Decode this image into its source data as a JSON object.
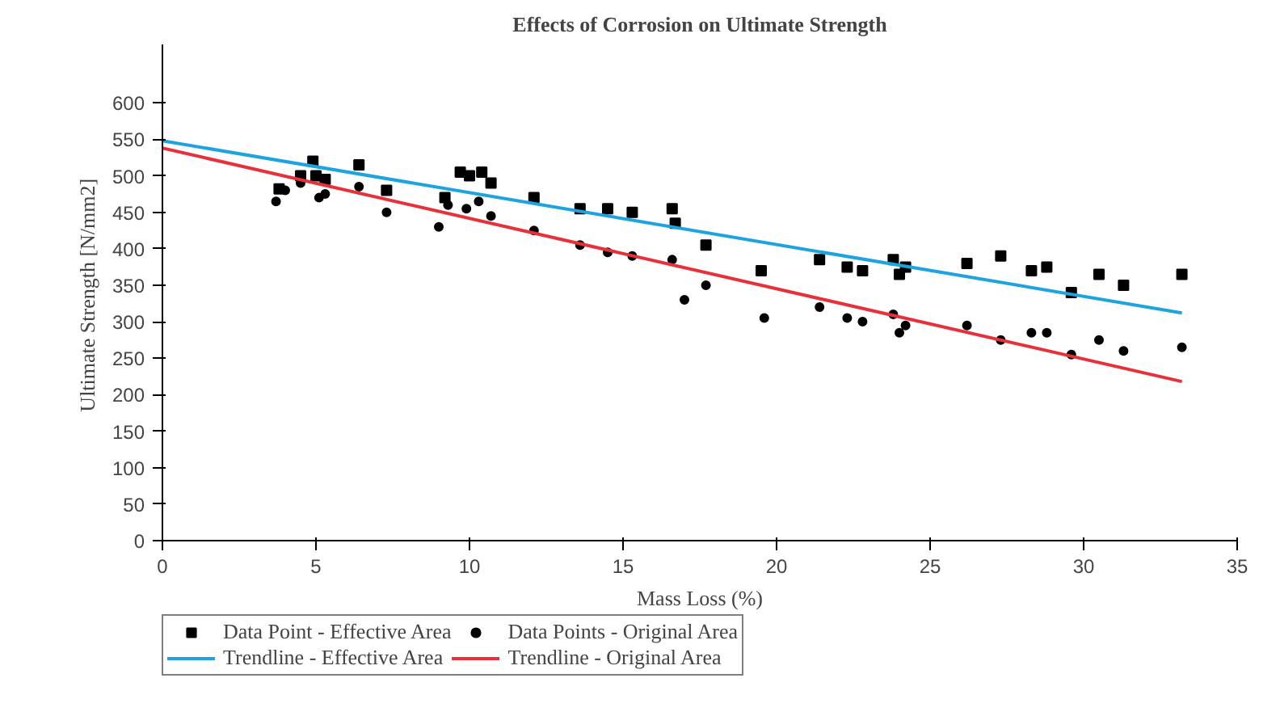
{
  "chart_data": {
    "type": "scatter",
    "title": "Effects of Corrosion on Ultimate Strength",
    "xlabel": "Mass Loss (%)",
    "ylabel": "Ultimate Strength  [N/mm2]",
    "xlim": [
      0,
      35
    ],
    "ylim": [
      0,
      680
    ],
    "xticks": [
      0,
      5,
      10,
      15,
      20,
      25,
      30,
      35
    ],
    "yticks": [
      0,
      50,
      100,
      150,
      200,
      250,
      300,
      350,
      400,
      450,
      500,
      550,
      600
    ],
    "legend": "bottom",
    "series": [
      {
        "name": "Data Point - Effective Area",
        "marker": "square",
        "color": "#000000",
        "x": [
          3.8,
          4.5,
          4.9,
          5.0,
          5.3,
          6.4,
          7.3,
          9.2,
          9.7,
          10.0,
          10.4,
          10.7,
          12.1,
          13.6,
          14.5,
          15.3,
          16.6,
          16.7,
          17.7,
          19.5,
          21.4,
          22.3,
          22.8,
          23.8,
          24.0,
          24.2,
          26.2,
          27.3,
          28.3,
          28.8,
          29.6,
          30.5,
          31.3,
          33.2
        ],
        "values": [
          482,
          500,
          520,
          500,
          495,
          515,
          480,
          470,
          505,
          500,
          505,
          490,
          470,
          455,
          455,
          450,
          455,
          435,
          405,
          370,
          385,
          375,
          370,
          385,
          365,
          375,
          380,
          390,
          370,
          375,
          340,
          365,
          350,
          365
        ]
      },
      {
        "name": "Data Points - Original Area",
        "marker": "circle",
        "color": "#000000",
        "x": [
          3.7,
          4.0,
          4.5,
          5.1,
          5.3,
          6.4,
          7.3,
          9.0,
          9.3,
          9.9,
          10.3,
          10.7,
          12.1,
          13.6,
          14.5,
          15.3,
          16.6,
          17.0,
          17.7,
          19.6,
          21.4,
          22.3,
          22.8,
          23.8,
          24.0,
          24.2,
          26.2,
          27.3,
          28.3,
          28.8,
          29.6,
          30.5,
          31.3,
          33.2
        ],
        "values": [
          465,
          480,
          490,
          470,
          475,
          485,
          450,
          430,
          460,
          455,
          465,
          445,
          425,
          405,
          395,
          390,
          385,
          330,
          350,
          305,
          320,
          305,
          300,
          310,
          285,
          295,
          295,
          275,
          285,
          285,
          255,
          275,
          260,
          265
        ]
      },
      {
        "name": "Trendline - Effective Area",
        "type": "line",
        "color": "#1ca3e0",
        "x": [
          0,
          33.2
        ],
        "values": [
          548,
          312
        ]
      },
      {
        "name": "Trendline - Original Area",
        "type": "line",
        "color": "#e8303a",
        "x": [
          0,
          33.2
        ],
        "values": [
          538,
          218
        ]
      }
    ]
  }
}
